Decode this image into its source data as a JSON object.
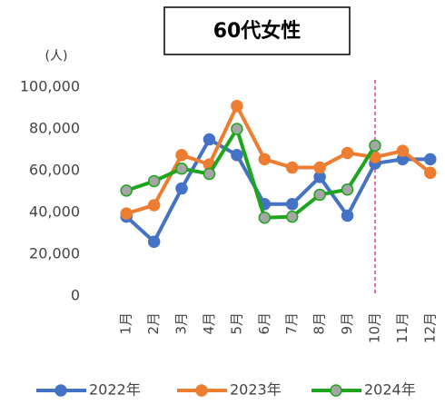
{
  "chart_data": {
    "type": "line",
    "title": "60代女性",
    "y_unit_label": "(人)",
    "categories": [
      "1月",
      "2月",
      "3月",
      "4月",
      "5月",
      "6月",
      "7月",
      "8月",
      "9月",
      "10月",
      "11月",
      "12月"
    ],
    "series": [
      {
        "name": "2022年",
        "color": "#4472c4",
        "marker_fill": "#4472c4",
        "values": [
          38000,
          26000,
          51500,
          75000,
          67500,
          44000,
          44000,
          57000,
          38500,
          63500,
          65500,
          65500
        ]
      },
      {
        "name": "2023年",
        "color": "#ed7d31",
        "marker_fill": "#ed7d31",
        "values": [
          39500,
          43500,
          67500,
          63000,
          91000,
          65500,
          61500,
          61500,
          68500,
          66500,
          69500,
          59000
        ]
      },
      {
        "name": "2024年",
        "color": "#1ea51e",
        "marker_fill": "#a5a5a5",
        "values": [
          50500,
          55000,
          61000,
          58500,
          80000,
          37500,
          38000,
          48500,
          51000,
          72000,
          null,
          null
        ]
      }
    ],
    "ylim": [
      0,
      100000
    ],
    "yticks": [
      0,
      {
        "value": 20000,
        "label": "20,000"
      },
      {
        "value": 40000,
        "label": "40,000"
      },
      {
        "value": 60000,
        "label": "60,000"
      },
      {
        "value": 80000,
        "label": "80,000"
      },
      {
        "value": 100000,
        "label": "100,000"
      }
    ],
    "grid": false,
    "reference_line": {
      "category": "10月",
      "color": "#e0245e",
      "style": "dashed"
    },
    "legend": "bottom"
  }
}
